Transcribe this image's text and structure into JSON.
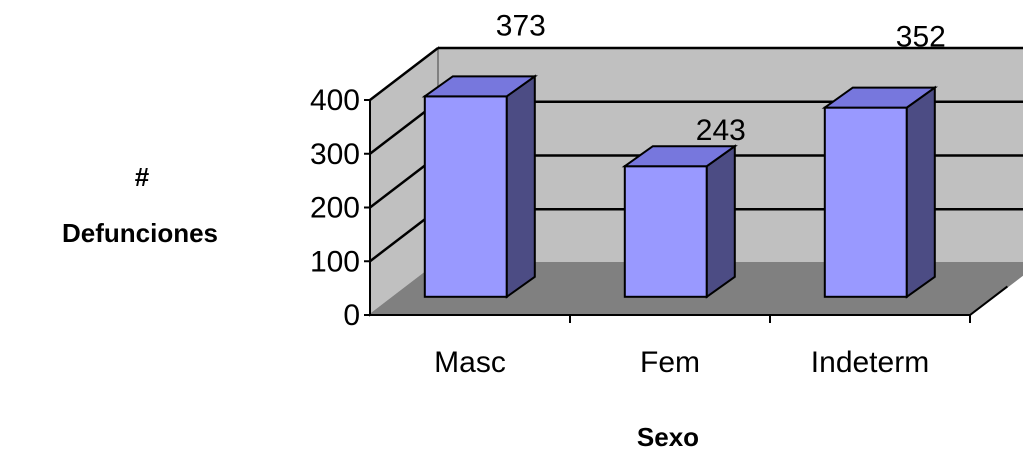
{
  "chart_data": {
    "type": "bar",
    "categories": [
      "Masc",
      "Fem",
      "Indeterm"
    ],
    "values": [
      373,
      243,
      352
    ],
    "title": "",
    "xlabel": "Sexo",
    "ylabel_lines": [
      "#",
      "Defunciones"
    ],
    "ylim": [
      0,
      400
    ],
    "yticks": [
      0,
      100,
      200,
      300,
      400
    ],
    "grid": true,
    "style": "3d-column",
    "colors": {
      "bar_front": "#9999FF",
      "bar_top": "#7777DD",
      "bar_side": "#4C4C84",
      "back_wall": "#C0C0C0",
      "side_wall": "#C0C0C0",
      "floor": "#808080",
      "gridline": "#000000"
    }
  }
}
